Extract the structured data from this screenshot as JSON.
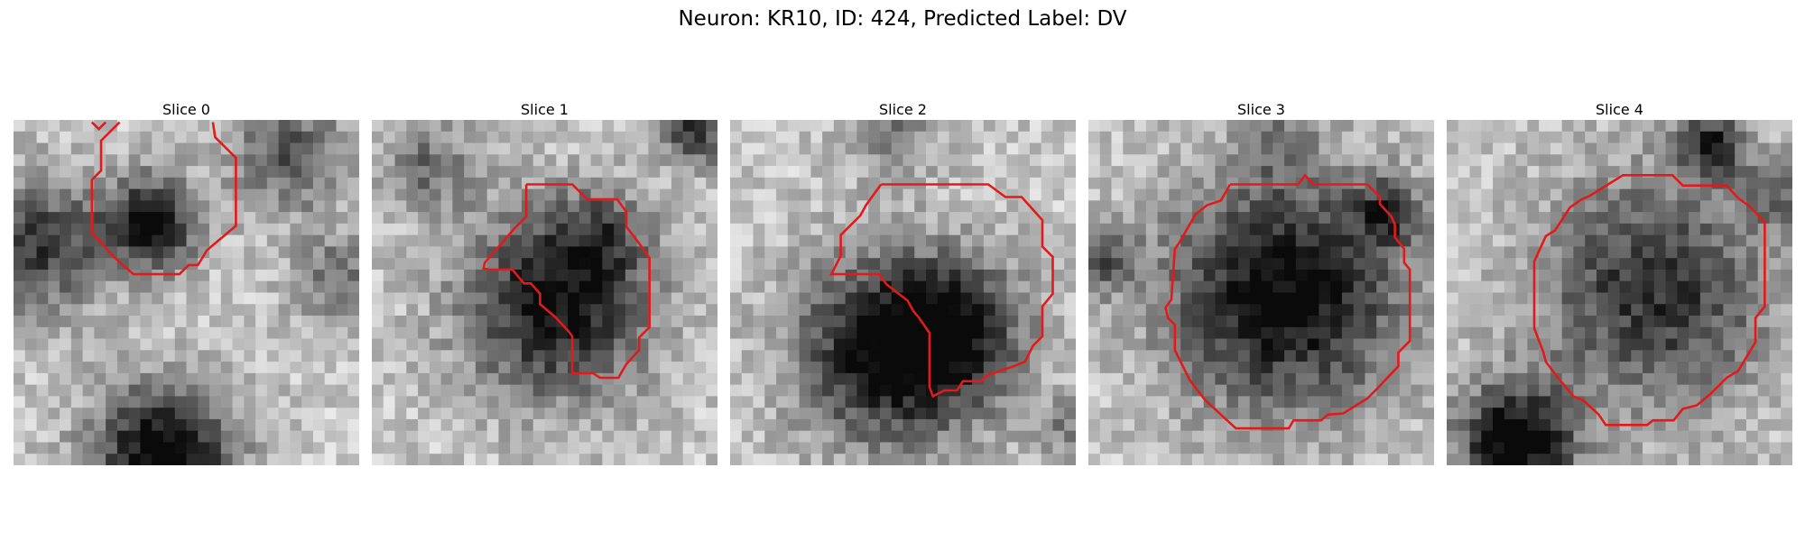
{
  "figure": {
    "title": "Neuron: KR10, ID: 424, Predicted Label: DV",
    "panels": [
      {
        "title": "Slice 0"
      },
      {
        "title": "Slice 1"
      },
      {
        "title": "Slice 2"
      },
      {
        "title": "Slice 3"
      },
      {
        "title": "Slice 4"
      }
    ],
    "contour_color": "#e31a1c",
    "colormap": "grayscale"
  }
}
